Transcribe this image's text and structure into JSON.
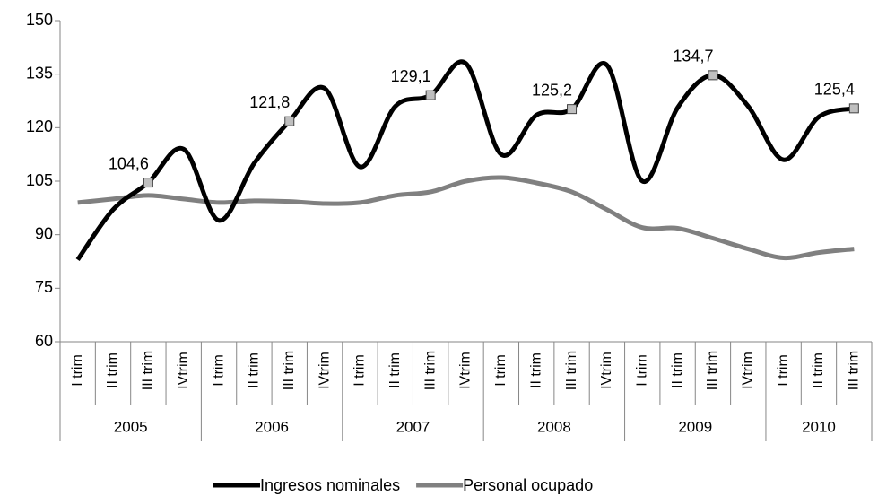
{
  "chart_data": {
    "type": "line",
    "category_groups": [
      {
        "name": "2005",
        "categories": [
          "I trim",
          "II trim",
          "III trim",
          "IVtrim"
        ]
      },
      {
        "name": "2006",
        "categories": [
          "I trim",
          "II trim",
          "III trim",
          "IVtrim"
        ]
      },
      {
        "name": "2007",
        "categories": [
          "I trim",
          "II trim",
          "III trim",
          "IVtrim"
        ]
      },
      {
        "name": "2008",
        "categories": [
          "I trim",
          "II trim",
          "III trim",
          "IVtrim"
        ]
      },
      {
        "name": "2009",
        "categories": [
          "I trim",
          "II trim",
          "III trim",
          "IVtrim"
        ]
      },
      {
        "name": "2010",
        "categories": [
          "I trim",
          "II trim",
          "III trim"
        ]
      }
    ],
    "series": [
      {
        "name": "Ingresos nominales",
        "color": "#000000",
        "values": [
          83,
          97,
          104.6,
          114,
          94,
          110,
          121.8,
          131,
          109,
          126,
          129.1,
          138,
          112.5,
          123.5,
          125.2,
          137.5,
          105,
          125.6,
          134.7,
          126,
          111,
          123,
          125.4
        ],
        "value_labels": [
          null,
          null,
          "104,6",
          null,
          null,
          null,
          "121,8",
          null,
          null,
          null,
          "129,1",
          null,
          null,
          null,
          "125,2",
          null,
          null,
          null,
          "134,7",
          null,
          null,
          null,
          "125,4"
        ]
      },
      {
        "name": "Personal ocupado",
        "color": "#808080",
        "values": [
          99,
          100,
          101,
          100,
          99,
          99.5,
          99.3,
          98.7,
          99,
          101,
          102,
          105,
          106,
          104.5,
          102,
          97,
          92,
          91.8,
          89,
          86,
          83.5,
          85,
          86
        ]
      }
    ],
    "ylim": [
      60,
      150
    ],
    "yticks": [
      60,
      75,
      90,
      105,
      120,
      135,
      150
    ]
  }
}
